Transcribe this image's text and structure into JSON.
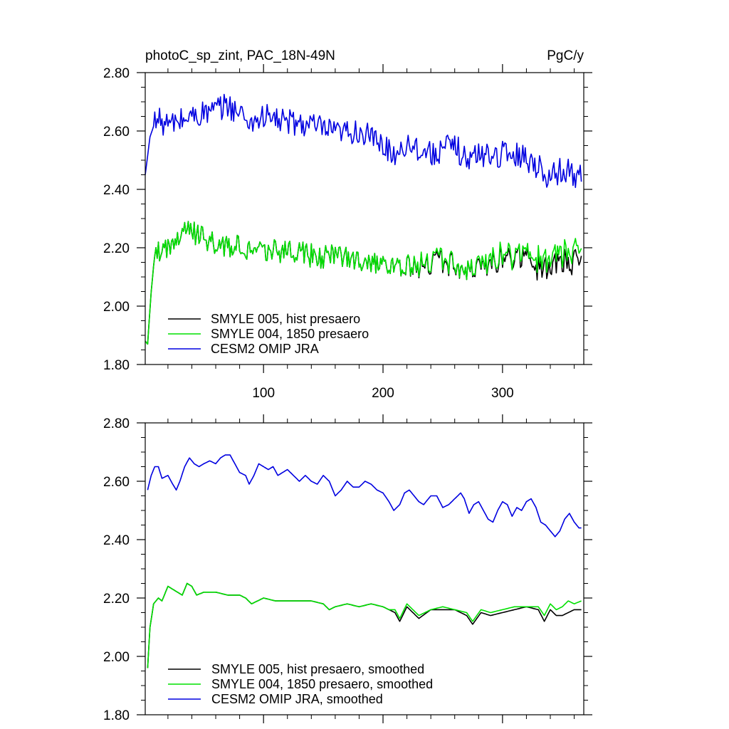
{
  "colors": {
    "smyle005": "#000000",
    "smyle004": "#00e000",
    "omip": "#0000e0"
  },
  "chart_data": [
    {
      "type": "line",
      "title_left": "photoC_sp_zint, PAC_18N-49N",
      "title_right": "PgC/y",
      "xlim": [
        1,
        368
      ],
      "ylim": [
        1.8,
        2.8
      ],
      "x_ticks": [
        100,
        200,
        300
      ],
      "x_tick_labels": [
        "100",
        "200",
        "300"
      ],
      "y_ticks": [
        1.8,
        2.0,
        2.2,
        2.4,
        2.6,
        2.8
      ],
      "y_tick_labels": [
        "1.80",
        "2.00",
        "2.20",
        "2.40",
        "2.60",
        "2.80"
      ],
      "legend_position": "bottom-left",
      "series": [
        {
          "name": "SMYLE 005, hist presaero",
          "color_key": "smyle005",
          "anchors": [
            [
              1,
              1.88
            ],
            [
              3,
              1.87
            ],
            [
              6,
              2.05
            ],
            [
              9,
              2.18
            ],
            [
              20,
              2.21
            ],
            [
              30,
              2.24
            ],
            [
              36,
              2.26
            ],
            [
              60,
              2.21
            ],
            [
              100,
              2.19
            ],
            [
              150,
              2.17
            ],
            [
              200,
              2.15
            ],
            [
              212,
              2.13
            ],
            [
              250,
              2.15
            ],
            [
              270,
              2.13
            ],
            [
              280,
              2.14
            ],
            [
              300,
              2.16
            ],
            [
              320,
              2.16
            ],
            [
              330,
              2.13
            ],
            [
              345,
              2.14
            ],
            [
              360,
              2.15
            ],
            [
              366,
              2.15
            ]
          ]
        },
        {
          "name": "SMYLE 004, 1850 presaero",
          "color_key": "smyle004",
          "anchors": [
            [
              1,
              1.88
            ],
            [
              3,
              1.87
            ],
            [
              6,
              2.05
            ],
            [
              9,
              2.18
            ],
            [
              20,
              2.21
            ],
            [
              30,
              2.24
            ],
            [
              36,
              2.26
            ],
            [
              60,
              2.21
            ],
            [
              100,
              2.19
            ],
            [
              150,
              2.17
            ],
            [
              200,
              2.15
            ],
            [
              212,
              2.13
            ],
            [
              250,
              2.16
            ],
            [
              270,
              2.13
            ],
            [
              280,
              2.15
            ],
            [
              300,
              2.17
            ],
            [
              320,
              2.17
            ],
            [
              330,
              2.16
            ],
            [
              345,
              2.17
            ],
            [
              360,
              2.19
            ],
            [
              366,
              2.19
            ]
          ]
        },
        {
          "name": "CESM2 OMIP JRA",
          "color_key": "omip",
          "anchors": [
            [
              1,
              2.45
            ],
            [
              5,
              2.58
            ],
            [
              10,
              2.64
            ],
            [
              20,
              2.62
            ],
            [
              40,
              2.65
            ],
            [
              60,
              2.67
            ],
            [
              70,
              2.69
            ],
            [
              80,
              2.66
            ],
            [
              90,
              2.63
            ],
            [
              100,
              2.65
            ],
            [
              120,
              2.63
            ],
            [
              140,
              2.62
            ],
            [
              160,
              2.59
            ],
            [
              180,
              2.6
            ],
            [
              200,
              2.55
            ],
            [
              210,
              2.52
            ],
            [
              220,
              2.56
            ],
            [
              240,
              2.52
            ],
            [
              260,
              2.55
            ],
            [
              270,
              2.5
            ],
            [
              280,
              2.52
            ],
            [
              300,
              2.52
            ],
            [
              315,
              2.52
            ],
            [
              330,
              2.48
            ],
            [
              340,
              2.44
            ],
            [
              350,
              2.47
            ],
            [
              360,
              2.45
            ],
            [
              366,
              2.44
            ]
          ]
        }
      ]
    },
    {
      "type": "line",
      "xlim": [
        1,
        368
      ],
      "ylim": [
        1.8,
        2.8
      ],
      "x_ticks": [
        100,
        200,
        300
      ],
      "y_ticks": [
        1.8,
        2.0,
        2.2,
        2.4,
        2.6,
        2.8
      ],
      "y_tick_labels": [
        "1.80",
        "2.00",
        "2.20",
        "2.40",
        "2.60",
        "2.80"
      ],
      "legend_position": "bottom-left",
      "series": [
        {
          "name": "SMYLE 005, hist presaero, smoothed",
          "color_key": "smyle005",
          "anchors": [
            [
              3,
              1.96
            ],
            [
              5,
              2.1
            ],
            [
              8,
              2.18
            ],
            [
              12,
              2.2
            ],
            [
              15,
              2.19
            ],
            [
              20,
              2.24
            ],
            [
              24,
              2.23
            ],
            [
              28,
              2.22
            ],
            [
              32,
              2.21
            ],
            [
              36,
              2.25
            ],
            [
              40,
              2.24
            ],
            [
              44,
              2.21
            ],
            [
              50,
              2.22
            ],
            [
              60,
              2.22
            ],
            [
              70,
              2.21
            ],
            [
              80,
              2.21
            ],
            [
              85,
              2.2
            ],
            [
              90,
              2.18
            ],
            [
              100,
              2.2
            ],
            [
              110,
              2.19
            ],
            [
              120,
              2.19
            ],
            [
              130,
              2.19
            ],
            [
              140,
              2.19
            ],
            [
              150,
              2.18
            ],
            [
              155,
              2.16
            ],
            [
              160,
              2.17
            ],
            [
              170,
              2.18
            ],
            [
              180,
              2.17
            ],
            [
              190,
              2.18
            ],
            [
              200,
              2.17
            ],
            [
              205,
              2.16
            ],
            [
              210,
              2.15
            ],
            [
              214,
              2.12
            ],
            [
              220,
              2.17
            ],
            [
              225,
              2.15
            ],
            [
              230,
              2.13
            ],
            [
              240,
              2.16
            ],
            [
              250,
              2.16
            ],
            [
              260,
              2.16
            ],
            [
              270,
              2.14
            ],
            [
              275,
              2.11
            ],
            [
              282,
              2.15
            ],
            [
              290,
              2.14
            ],
            [
              300,
              2.15
            ],
            [
              310,
              2.16
            ],
            [
              320,
              2.17
            ],
            [
              330,
              2.16
            ],
            [
              335,
              2.12
            ],
            [
              340,
              2.16
            ],
            [
              345,
              2.14
            ],
            [
              350,
              2.14
            ],
            [
              355,
              2.15
            ],
            [
              360,
              2.16
            ],
            [
              366,
              2.16
            ]
          ]
        },
        {
          "name": "SMYLE 004, 1850 presaero, smoothed",
          "color_key": "smyle004",
          "anchors": [
            [
              3,
              1.96
            ],
            [
              5,
              2.1
            ],
            [
              8,
              2.18
            ],
            [
              12,
              2.2
            ],
            [
              15,
              2.19
            ],
            [
              20,
              2.24
            ],
            [
              24,
              2.23
            ],
            [
              28,
              2.22
            ],
            [
              32,
              2.21
            ],
            [
              36,
              2.25
            ],
            [
              40,
              2.24
            ],
            [
              44,
              2.21
            ],
            [
              50,
              2.22
            ],
            [
              60,
              2.22
            ],
            [
              70,
              2.21
            ],
            [
              80,
              2.21
            ],
            [
              85,
              2.2
            ],
            [
              90,
              2.18
            ],
            [
              100,
              2.2
            ],
            [
              110,
              2.19
            ],
            [
              120,
              2.19
            ],
            [
              130,
              2.19
            ],
            [
              140,
              2.19
            ],
            [
              150,
              2.18
            ],
            [
              155,
              2.16
            ],
            [
              160,
              2.17
            ],
            [
              170,
              2.18
            ],
            [
              180,
              2.17
            ],
            [
              190,
              2.18
            ],
            [
              200,
              2.17
            ],
            [
              205,
              2.16
            ],
            [
              210,
              2.16
            ],
            [
              214,
              2.13
            ],
            [
              220,
              2.18
            ],
            [
              225,
              2.16
            ],
            [
              230,
              2.14
            ],
            [
              240,
              2.16
            ],
            [
              250,
              2.17
            ],
            [
              260,
              2.16
            ],
            [
              270,
              2.15
            ],
            [
              275,
              2.12
            ],
            [
              282,
              2.16
            ],
            [
              290,
              2.15
            ],
            [
              300,
              2.16
            ],
            [
              310,
              2.17
            ],
            [
              320,
              2.17
            ],
            [
              330,
              2.17
            ],
            [
              335,
              2.14
            ],
            [
              340,
              2.18
            ],
            [
              345,
              2.16
            ],
            [
              350,
              2.17
            ],
            [
              355,
              2.19
            ],
            [
              360,
              2.18
            ],
            [
              366,
              2.19
            ]
          ]
        },
        {
          "name": "CESM2 OMIP JRA, smoothed",
          "color_key": "omip",
          "anchors": [
            [
              3,
              2.57
            ],
            [
              6,
              2.62
            ],
            [
              9,
              2.65
            ],
            [
              12,
              2.65
            ],
            [
              15,
              2.61
            ],
            [
              20,
              2.62
            ],
            [
              24,
              2.59
            ],
            [
              27,
              2.57
            ],
            [
              30,
              2.6
            ],
            [
              34,
              2.65
            ],
            [
              38,
              2.68
            ],
            [
              42,
              2.66
            ],
            [
              46,
              2.65
            ],
            [
              50,
              2.66
            ],
            [
              55,
              2.67
            ],
            [
              60,
              2.66
            ],
            [
              64,
              2.68
            ],
            [
              68,
              2.69
            ],
            [
              72,
              2.69
            ],
            [
              76,
              2.66
            ],
            [
              80,
              2.63
            ],
            [
              85,
              2.62
            ],
            [
              88,
              2.59
            ],
            [
              92,
              2.62
            ],
            [
              96,
              2.66
            ],
            [
              100,
              2.65
            ],
            [
              104,
              2.64
            ],
            [
              108,
              2.65
            ],
            [
              112,
              2.62
            ],
            [
              116,
              2.63
            ],
            [
              120,
              2.64
            ],
            [
              125,
              2.62
            ],
            [
              130,
              2.6
            ],
            [
              135,
              2.62
            ],
            [
              140,
              2.6
            ],
            [
              145,
              2.59
            ],
            [
              150,
              2.62
            ],
            [
              155,
              2.6
            ],
            [
              160,
              2.55
            ],
            [
              165,
              2.57
            ],
            [
              170,
              2.6
            ],
            [
              175,
              2.58
            ],
            [
              180,
              2.58
            ],
            [
              185,
              2.6
            ],
            [
              190,
              2.59
            ],
            [
              195,
              2.57
            ],
            [
              200,
              2.56
            ],
            [
              205,
              2.53
            ],
            [
              209,
              2.5
            ],
            [
              214,
              2.52
            ],
            [
              218,
              2.56
            ],
            [
              222,
              2.57
            ],
            [
              226,
              2.55
            ],
            [
              230,
              2.53
            ],
            [
              234,
              2.52
            ],
            [
              240,
              2.55
            ],
            [
              245,
              2.55
            ],
            [
              250,
              2.51
            ],
            [
              255,
              2.52
            ],
            [
              260,
              2.54
            ],
            [
              265,
              2.56
            ],
            [
              268,
              2.54
            ],
            [
              272,
              2.49
            ],
            [
              276,
              2.52
            ],
            [
              280,
              2.53
            ],
            [
              284,
              2.5
            ],
            [
              288,
              2.47
            ],
            [
              292,
              2.46
            ],
            [
              296,
              2.5
            ],
            [
              300,
              2.53
            ],
            [
              304,
              2.52
            ],
            [
              308,
              2.48
            ],
            [
              312,
              2.51
            ],
            [
              316,
              2.5
            ],
            [
              320,
              2.53
            ],
            [
              324,
              2.54
            ],
            [
              328,
              2.51
            ],
            [
              332,
              2.46
            ],
            [
              336,
              2.45
            ],
            [
              340,
              2.43
            ],
            [
              344,
              2.41
            ],
            [
              348,
              2.43
            ],
            [
              352,
              2.47
            ],
            [
              356,
              2.49
            ],
            [
              360,
              2.46
            ],
            [
              364,
              2.44
            ],
            [
              366,
              2.44
            ]
          ]
        }
      ]
    }
  ]
}
